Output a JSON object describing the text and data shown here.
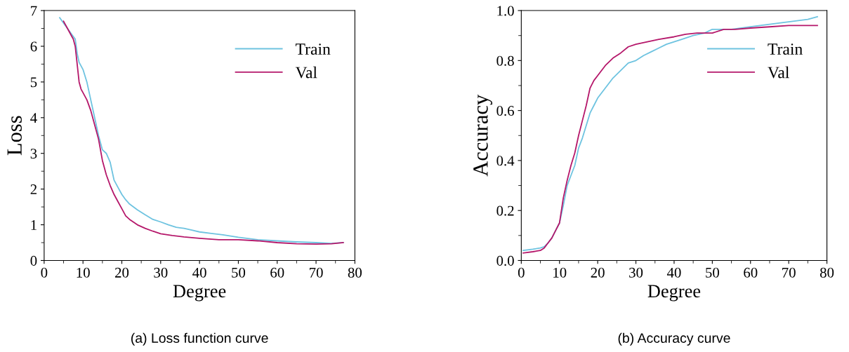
{
  "chart_data": [
    {
      "type": "line",
      "title": "(a) Loss function curve",
      "xlabel": "Degree",
      "ylabel": "Loss",
      "xlim": [
        0,
        80
      ],
      "ylim": [
        0,
        7
      ],
      "xticks": [
        0,
        10,
        20,
        30,
        40,
        50,
        60,
        70,
        80
      ],
      "yticks": [
        0,
        1,
        2,
        3,
        4,
        5,
        6,
        7
      ],
      "grid": false,
      "legend": "top right",
      "marker": "none",
      "line_style": "solid",
      "series": [
        {
          "name": "Train",
          "color": "#6ec3e0",
          "x": [
            4,
            5,
            6,
            7,
            8,
            8.5,
            9,
            10,
            11,
            12,
            13,
            14,
            15,
            16,
            17,
            18,
            19,
            20,
            21,
            22,
            24,
            26,
            28,
            30,
            32,
            34,
            36,
            38,
            40,
            43,
            46,
            50,
            55,
            60,
            65,
            70,
            74,
            77
          ],
          "values": [
            6.8,
            6.65,
            6.5,
            6.35,
            6.2,
            5.8,
            5.55,
            5.35,
            5.0,
            4.5,
            4.0,
            3.5,
            3.1,
            3.0,
            2.75,
            2.25,
            2.05,
            1.85,
            1.7,
            1.58,
            1.42,
            1.28,
            1.15,
            1.08,
            1.0,
            0.93,
            0.9,
            0.85,
            0.8,
            0.76,
            0.72,
            0.65,
            0.58,
            0.55,
            0.52,
            0.5,
            0.48,
            0.5
          ]
        },
        {
          "name": "Val",
          "color": "#b5176a",
          "x": [
            5,
            6,
            7,
            7.5,
            8,
            8.5,
            9,
            9.5,
            10,
            11,
            12,
            13,
            14,
            15,
            16,
            17,
            18,
            19,
            20,
            21,
            22,
            24,
            26,
            28,
            30,
            33,
            36,
            40,
            45,
            50,
            55,
            60,
            65,
            70,
            74,
            77
          ],
          "values": [
            6.7,
            6.5,
            6.3,
            6.2,
            6.0,
            5.5,
            5.0,
            4.8,
            4.7,
            4.5,
            4.2,
            3.8,
            3.4,
            2.8,
            2.4,
            2.1,
            1.85,
            1.65,
            1.45,
            1.25,
            1.15,
            1.0,
            0.9,
            0.82,
            0.75,
            0.7,
            0.66,
            0.62,
            0.58,
            0.58,
            0.55,
            0.5,
            0.47,
            0.46,
            0.47,
            0.5
          ]
        }
      ]
    },
    {
      "type": "line",
      "title": "(b) Accuracy curve",
      "xlabel": "Degree",
      "ylabel": "Accuracy",
      "xlim": [
        0,
        80
      ],
      "ylim": [
        0,
        1.0
      ],
      "xticks": [
        0,
        10,
        20,
        30,
        40,
        50,
        60,
        70,
        80
      ],
      "yticks": [
        {
          "value": 0,
          "label": "0.0"
        },
        0.2,
        0.4,
        0.6,
        0.8,
        {
          "value": 1.0,
          "label": "1.0"
        }
      ],
      "grid": false,
      "legend": "top right",
      "marker": "none",
      "line_style": "solid",
      "series": [
        {
          "name": "Train",
          "color": "#6ec3e0",
          "x": [
            0.5,
            3,
            5,
            6,
            7,
            8,
            9,
            10,
            11,
            12,
            13,
            14,
            15,
            16,
            17,
            18,
            19,
            20,
            22,
            24,
            26,
            28,
            30,
            32,
            34,
            36,
            38,
            40,
            42,
            45,
            48,
            50,
            55,
            60,
            65,
            70,
            75,
            77.5
          ],
          "values": [
            0.04,
            0.045,
            0.05,
            0.055,
            0.07,
            0.09,
            0.12,
            0.15,
            0.22,
            0.3,
            0.34,
            0.38,
            0.45,
            0.49,
            0.54,
            0.59,
            0.62,
            0.65,
            0.69,
            0.73,
            0.76,
            0.79,
            0.8,
            0.82,
            0.835,
            0.85,
            0.865,
            0.875,
            0.885,
            0.9,
            0.91,
            0.925,
            0.925,
            0.935,
            0.945,
            0.955,
            0.965,
            0.975
          ]
        },
        {
          "name": "Val",
          "color": "#b5176a",
          "x": [
            0.5,
            3,
            5,
            6,
            7,
            8,
            9,
            10,
            11,
            12,
            13,
            14,
            15,
            16,
            17,
            18,
            19,
            20,
            22,
            24,
            26,
            28,
            30,
            33,
            36,
            40,
            43,
            46,
            50,
            53,
            56,
            60,
            65,
            70,
            77.5
          ],
          "values": [
            0.03,
            0.035,
            0.04,
            0.05,
            0.07,
            0.09,
            0.12,
            0.15,
            0.25,
            0.32,
            0.38,
            0.43,
            0.5,
            0.56,
            0.62,
            0.69,
            0.72,
            0.74,
            0.78,
            0.81,
            0.83,
            0.855,
            0.865,
            0.875,
            0.885,
            0.895,
            0.905,
            0.91,
            0.91,
            0.925,
            0.925,
            0.93,
            0.935,
            0.94,
            0.94
          ]
        }
      ]
    }
  ]
}
